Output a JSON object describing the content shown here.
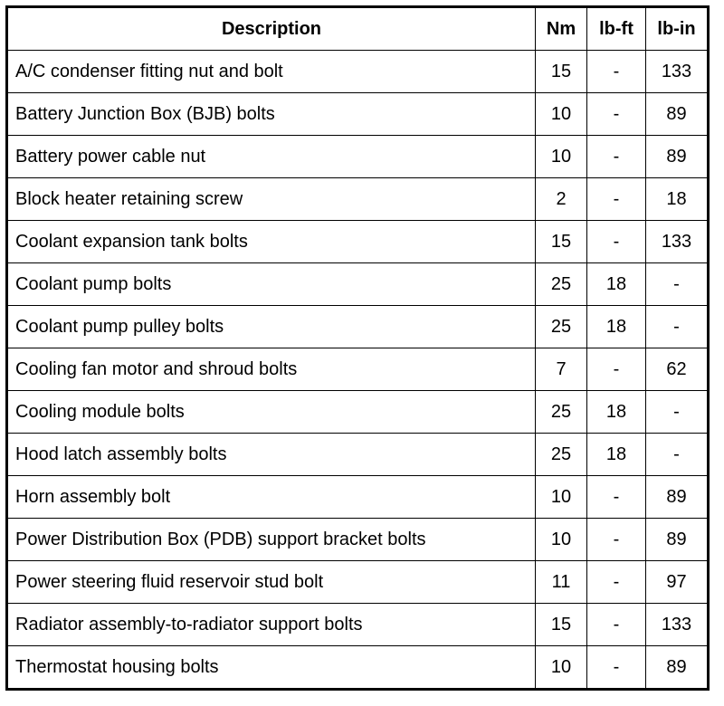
{
  "table": {
    "header": [
      "Description",
      "Nm",
      "lb-ft",
      "lb-in"
    ],
    "rows": [
      [
        "A/C condenser fitting nut and bolt",
        "15",
        "-",
        "133"
      ],
      [
        "Battery Junction Box (BJB) bolts",
        "10",
        "-",
        "89"
      ],
      [
        "Battery power cable nut",
        "10",
        "-",
        "89"
      ],
      [
        "Block heater retaining screw",
        "2",
        "-",
        "18"
      ],
      [
        "Coolant expansion tank bolts",
        "15",
        "-",
        "133"
      ],
      [
        "Coolant pump bolts",
        "25",
        "18",
        "-"
      ],
      [
        "Coolant pump pulley bolts",
        "25",
        "18",
        "-"
      ],
      [
        "Cooling fan motor and shroud bolts",
        "7",
        "-",
        "62"
      ],
      [
        "Cooling module bolts",
        "25",
        "18",
        "-"
      ],
      [
        "Hood latch assembly bolts",
        "25",
        "18",
        "-"
      ],
      [
        "Horn assembly bolt",
        "10",
        "-",
        "89"
      ],
      [
        "Power Distribution Box (PDB) support bracket bolts",
        "10",
        "-",
        "89"
      ],
      [
        "Power steering fluid reservoir stud bolt",
        "11",
        "-",
        "97"
      ],
      [
        "Radiator assembly-to-radiator support bolts",
        "15",
        "-",
        "133"
      ],
      [
        "Thermostat housing bolts",
        "10",
        "-",
        "89"
      ]
    ]
  }
}
